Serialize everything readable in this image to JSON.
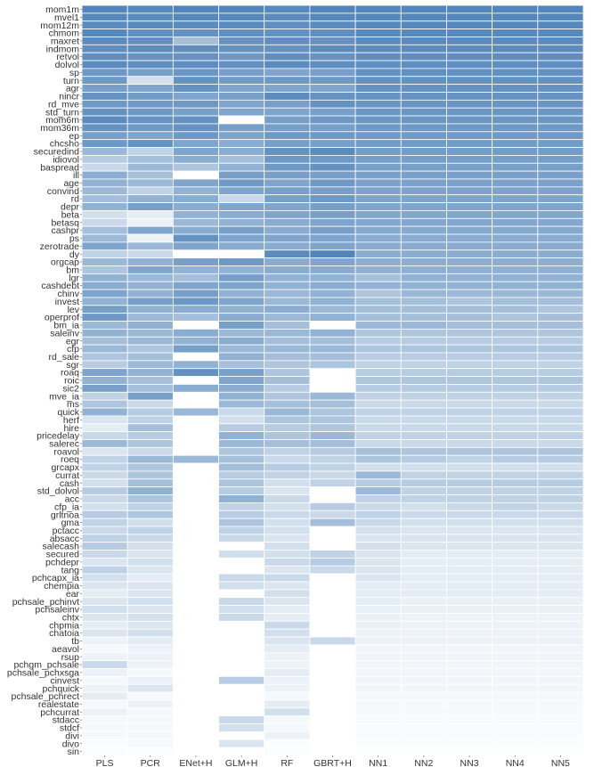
{
  "chart_data": {
    "type": "heatmap",
    "title": "",
    "xlabel": "",
    "ylabel": "",
    "value_scale": "relative variable importance rank (1 = most important, 0 = least), estimated from cell shading",
    "color_low": "#ffffff",
    "color_high": "#4a7fb6",
    "columns": [
      "PLS",
      "PCR",
      "ENet+H",
      "GLM+H",
      "RF",
      "GBRT+H",
      "NN1",
      "NN2",
      "NN3",
      "NN4",
      "NN5"
    ],
    "rows": [
      "mom1m",
      "mvel1",
      "mom12m",
      "chmom",
      "maxret",
      "indmom",
      "retvol",
      "dolvol",
      "sp",
      "turn",
      "agr",
      "nincr",
      "rd_mve",
      "std_turn",
      "mom6m",
      "mom36m",
      "ep",
      "chcsho",
      "securedind",
      "idiovol",
      "baspread",
      "ill",
      "age",
      "convind",
      "rd",
      "depr",
      "beta",
      "betasq",
      "cashpr",
      "ps",
      "zerotrade",
      "dy",
      "orgcap",
      "bm",
      "lgr",
      "cashdebt",
      "chinv",
      "invest",
      "lev",
      "operprof",
      "bm_ia",
      "saleinv",
      "egr",
      "cfp",
      "rd_sale",
      "sgr",
      "roaq",
      "roic",
      "sic2",
      "mve_ia",
      "ms",
      "quick",
      "herf",
      "hire",
      "pricedelay",
      "salerec",
      "roavol",
      "roeq",
      "grcapx",
      "currat",
      "cash",
      "std_dolvol",
      "acc",
      "cfp_ia",
      "grltnoa",
      "gma",
      "pctacc",
      "absacc",
      "salecash",
      "secured",
      "pchdepr",
      "tang",
      "pchcapx_ia",
      "chempia",
      "ear",
      "pchsale_pchinvt",
      "pchsaleinv",
      "chtx",
      "chpmia",
      "chatoia",
      "tb",
      "aeavol",
      "rsup",
      "pchgm_pchsale",
      "pchsale_pchxsga",
      "cinvest",
      "pchquick",
      "pchsale_pchrect",
      "realestate",
      "pchcurrat",
      "stdacc",
      "stdcf",
      "divi",
      "divo",
      "sin"
    ],
    "values": [
      [
        0.95,
        0.93,
        0.95,
        0.95,
        0.92,
        0.95,
        0.95,
        0.95,
        0.95,
        0.95,
        0.95
      ],
      [
        0.92,
        0.9,
        0.93,
        0.93,
        0.9,
        0.93,
        0.94,
        0.94,
        0.94,
        0.94,
        0.94
      ],
      [
        0.9,
        0.92,
        0.9,
        0.9,
        0.88,
        0.9,
        0.93,
        0.93,
        0.93,
        0.93,
        0.93
      ],
      [
        0.93,
        0.88,
        0.85,
        0.88,
        0.85,
        0.88,
        0.92,
        0.92,
        0.92,
        0.92,
        0.92
      ],
      [
        0.9,
        0.88,
        0.5,
        0.85,
        0.88,
        0.85,
        0.91,
        0.91,
        0.91,
        0.91,
        0.91
      ],
      [
        0.88,
        0.9,
        0.88,
        0.85,
        0.85,
        0.9,
        0.9,
        0.9,
        0.9,
        0.9,
        0.9
      ],
      [
        0.88,
        0.85,
        0.85,
        0.8,
        0.88,
        0.85,
        0.89,
        0.89,
        0.89,
        0.89,
        0.89
      ],
      [
        0.9,
        0.88,
        0.88,
        0.85,
        0.9,
        0.88,
        0.88,
        0.88,
        0.88,
        0.88,
        0.88
      ],
      [
        0.8,
        0.75,
        0.82,
        0.75,
        0.7,
        0.75,
        0.87,
        0.87,
        0.87,
        0.87,
        0.87
      ],
      [
        0.8,
        0.25,
        0.85,
        0.78,
        0.8,
        0.8,
        0.86,
        0.86,
        0.86,
        0.86,
        0.86
      ],
      [
        0.75,
        0.7,
        0.85,
        0.7,
        0.7,
        0.7,
        0.85,
        0.85,
        0.85,
        0.85,
        0.85
      ],
      [
        0.85,
        0.78,
        0.7,
        0.75,
        0.9,
        0.85,
        0.84,
        0.84,
        0.84,
        0.84,
        0.84
      ],
      [
        0.8,
        0.8,
        0.8,
        0.7,
        0.75,
        0.85,
        0.83,
        0.83,
        0.83,
        0.83,
        0.83
      ],
      [
        0.85,
        0.8,
        0.75,
        0.7,
        0.7,
        0.75,
        0.82,
        0.82,
        0.82,
        0.82,
        0.82
      ],
      [
        0.9,
        0.85,
        0.85,
        0.0,
        0.75,
        0.8,
        0.81,
        0.81,
        0.81,
        0.81,
        0.81
      ],
      [
        0.85,
        0.8,
        0.85,
        0.75,
        0.75,
        0.75,
        0.8,
        0.8,
        0.8,
        0.8,
        0.8
      ],
      [
        0.75,
        0.7,
        0.8,
        0.7,
        0.8,
        0.8,
        0.79,
        0.79,
        0.79,
        0.79,
        0.79
      ],
      [
        0.8,
        0.85,
        0.7,
        0.65,
        0.75,
        0.75,
        0.78,
        0.78,
        0.78,
        0.78,
        0.78
      ],
      [
        0.55,
        0.35,
        0.7,
        0.65,
        0.85,
        0.9,
        0.77,
        0.77,
        0.77,
        0.77,
        0.77
      ],
      [
        0.4,
        0.5,
        0.65,
        0.5,
        0.8,
        0.8,
        0.76,
        0.76,
        0.76,
        0.76,
        0.76
      ],
      [
        0.3,
        0.55,
        0.45,
        0.6,
        0.8,
        0.85,
        0.75,
        0.75,
        0.75,
        0.75,
        0.75
      ],
      [
        0.65,
        0.5,
        0.0,
        0.75,
        0.75,
        0.75,
        0.74,
        0.74,
        0.74,
        0.74,
        0.74
      ],
      [
        0.6,
        0.55,
        0.7,
        0.8,
        0.7,
        0.8,
        0.73,
        0.73,
        0.73,
        0.73,
        0.73
      ],
      [
        0.55,
        0.35,
        0.6,
        0.7,
        0.75,
        0.75,
        0.72,
        0.72,
        0.72,
        0.72,
        0.72
      ],
      [
        0.5,
        0.6,
        0.65,
        0.3,
        0.75,
        0.8,
        0.71,
        0.71,
        0.71,
        0.71,
        0.71
      ],
      [
        0.6,
        0.75,
        0.65,
        0.7,
        0.7,
        0.75,
        0.7,
        0.7,
        0.7,
        0.7,
        0.7
      ],
      [
        0.25,
        0.15,
        0.6,
        0.65,
        0.7,
        0.75,
        0.69,
        0.69,
        0.69,
        0.69,
        0.69
      ],
      [
        0.3,
        0.1,
        0.55,
        0.6,
        0.65,
        0.7,
        0.68,
        0.68,
        0.68,
        0.68,
        0.68
      ],
      [
        0.5,
        0.7,
        0.65,
        0.75,
        0.65,
        0.75,
        0.67,
        0.67,
        0.67,
        0.67,
        0.67
      ],
      [
        0.55,
        0.1,
        0.85,
        0.7,
        0.7,
        0.7,
        0.66,
        0.66,
        0.66,
        0.66,
        0.66
      ],
      [
        0.7,
        0.55,
        0.7,
        0.65,
        0.65,
        0.7,
        0.65,
        0.65,
        0.65,
        0.65,
        0.65
      ],
      [
        0.35,
        0.3,
        0.0,
        0.0,
        0.9,
        0.95,
        0.64,
        0.64,
        0.64,
        0.64,
        0.64
      ],
      [
        0.55,
        0.6,
        0.75,
        0.8,
        0.65,
        0.7,
        0.63,
        0.63,
        0.63,
        0.63,
        0.63
      ],
      [
        0.45,
        0.7,
        0.6,
        0.6,
        0.65,
        0.65,
        0.62,
        0.62,
        0.62,
        0.62,
        0.62
      ],
      [
        0.6,
        0.55,
        0.5,
        0.75,
        0.6,
        0.6,
        0.5,
        0.6,
        0.6,
        0.6,
        0.6
      ],
      [
        0.65,
        0.6,
        0.7,
        0.7,
        0.6,
        0.65,
        0.6,
        0.6,
        0.6,
        0.6,
        0.6
      ],
      [
        0.7,
        0.6,
        0.75,
        0.6,
        0.55,
        0.6,
        0.45,
        0.55,
        0.55,
        0.55,
        0.55
      ],
      [
        0.6,
        0.75,
        0.8,
        0.7,
        0.55,
        0.6,
        0.5,
        0.5,
        0.45,
        0.5,
        0.5
      ],
      [
        0.75,
        0.6,
        0.65,
        0.6,
        0.65,
        0.55,
        0.5,
        0.5,
        0.5,
        0.5,
        0.45
      ],
      [
        0.8,
        0.55,
        0.5,
        0.65,
        0.55,
        0.6,
        0.5,
        0.5,
        0.5,
        0.45,
        0.5
      ],
      [
        0.55,
        0.6,
        0.0,
        0.75,
        0.5,
        0.0,
        0.55,
        0.55,
        0.5,
        0.5,
        0.5
      ],
      [
        0.6,
        0.55,
        0.65,
        0.55,
        0.55,
        0.6,
        0.45,
        0.45,
        0.45,
        0.45,
        0.45
      ],
      [
        0.5,
        0.55,
        0.6,
        0.65,
        0.5,
        0.5,
        0.4,
        0.4,
        0.4,
        0.4,
        0.4
      ],
      [
        0.55,
        0.45,
        0.75,
        0.55,
        0.55,
        0.55,
        0.45,
        0.45,
        0.45,
        0.45,
        0.45
      ],
      [
        0.45,
        0.5,
        0.0,
        0.6,
        0.5,
        0.5,
        0.4,
        0.4,
        0.4,
        0.4,
        0.4
      ],
      [
        0.4,
        0.55,
        0.6,
        0.5,
        0.45,
        0.45,
        0.35,
        0.35,
        0.35,
        0.35,
        0.35
      ],
      [
        0.7,
        0.6,
        0.85,
        0.75,
        0.45,
        0.0,
        0.4,
        0.4,
        0.4,
        0.4,
        0.4
      ],
      [
        0.6,
        0.5,
        0.0,
        0.7,
        0.5,
        0.0,
        0.45,
        0.45,
        0.45,
        0.45,
        0.45
      ],
      [
        0.75,
        0.5,
        0.65,
        0.65,
        0.4,
        0.0,
        0.4,
        0.4,
        0.4,
        0.4,
        0.4
      ],
      [
        0.35,
        0.75,
        0.0,
        0.6,
        0.45,
        0.55,
        0.35,
        0.35,
        0.35,
        0.35,
        0.35
      ],
      [
        0.45,
        0.3,
        0.0,
        0.55,
        0.5,
        0.5,
        0.3,
        0.3,
        0.3,
        0.3,
        0.3
      ],
      [
        0.6,
        0.4,
        0.55,
        0.3,
        0.55,
        0.45,
        0.35,
        0.35,
        0.35,
        0.35,
        0.35
      ],
      [
        0.2,
        0.35,
        0.0,
        0.25,
        0.45,
        0.45,
        0.3,
        0.3,
        0.3,
        0.3,
        0.3
      ],
      [
        0.15,
        0.5,
        0.0,
        0.4,
        0.4,
        0.45,
        0.3,
        0.3,
        0.3,
        0.3,
        0.3
      ],
      [
        0.3,
        0.4,
        0.0,
        0.6,
        0.45,
        0.55,
        0.35,
        0.35,
        0.35,
        0.35,
        0.35
      ],
      [
        0.55,
        0.45,
        0.0,
        0.55,
        0.5,
        0.5,
        0.3,
        0.3,
        0.3,
        0.3,
        0.3
      ],
      [
        0.2,
        0.3,
        0.0,
        0.45,
        0.35,
        0.4,
        0.5,
        0.45,
        0.45,
        0.45,
        0.45
      ],
      [
        0.35,
        0.55,
        0.55,
        0.5,
        0.3,
        0.35,
        0.45,
        0.4,
        0.35,
        0.4,
        0.4
      ],
      [
        0.35,
        0.45,
        0.0,
        0.5,
        0.4,
        0.35,
        0.25,
        0.25,
        0.25,
        0.25,
        0.25
      ],
      [
        0.3,
        0.45,
        0.0,
        0.4,
        0.35,
        0.3,
        0.55,
        0.35,
        0.35,
        0.35,
        0.35
      ],
      [
        0.25,
        0.5,
        0.0,
        0.45,
        0.25,
        0.35,
        0.4,
        0.4,
        0.4,
        0.4,
        0.4
      ],
      [
        0.4,
        0.6,
        0.0,
        0.4,
        0.2,
        0.0,
        0.55,
        0.35,
        0.35,
        0.35,
        0.35
      ],
      [
        0.3,
        0.45,
        0.0,
        0.6,
        0.3,
        0.0,
        0.35,
        0.35,
        0.35,
        0.35,
        0.35
      ],
      [
        0.25,
        0.35,
        0.0,
        0.35,
        0.25,
        0.4,
        0.3,
        0.25,
        0.3,
        0.35,
        0.3
      ],
      [
        0.4,
        0.45,
        0.0,
        0.4,
        0.3,
        0.3,
        0.35,
        0.3,
        0.3,
        0.3,
        0.3
      ],
      [
        0.35,
        0.25,
        0.0,
        0.45,
        0.25,
        0.5,
        0.3,
        0.25,
        0.25,
        0.25,
        0.25
      ],
      [
        0.3,
        0.35,
        0.0,
        0.35,
        0.25,
        0.0,
        0.25,
        0.2,
        0.2,
        0.2,
        0.2
      ],
      [
        0.35,
        0.3,
        0.0,
        0.3,
        0.2,
        0.0,
        0.2,
        0.2,
        0.2,
        0.2,
        0.2
      ],
      [
        0.4,
        0.25,
        0.0,
        0.0,
        0.25,
        0.0,
        0.25,
        0.2,
        0.2,
        0.2,
        0.2
      ],
      [
        0.3,
        0.2,
        0.0,
        0.25,
        0.25,
        0.35,
        0.2,
        0.15,
        0.15,
        0.15,
        0.15
      ],
      [
        0.2,
        0.25,
        0.0,
        0.0,
        0.3,
        0.4,
        0.2,
        0.15,
        0.15,
        0.15,
        0.15
      ],
      [
        0.35,
        0.2,
        0.0,
        0.0,
        0.2,
        0.3,
        0.2,
        0.15,
        0.15,
        0.15,
        0.15
      ],
      [
        0.25,
        0.15,
        0.0,
        0.3,
        0.3,
        0.0,
        0.2,
        0.15,
        0.15,
        0.15,
        0.15
      ],
      [
        0.2,
        0.2,
        0.0,
        0.25,
        0.2,
        0.0,
        0.15,
        0.15,
        0.15,
        0.15,
        0.15
      ],
      [
        0.15,
        0.2,
        0.0,
        0.0,
        0.25,
        0.0,
        0.15,
        0.15,
        0.15,
        0.15,
        0.15
      ],
      [
        0.2,
        0.25,
        0.0,
        0.3,
        0.2,
        0.0,
        0.15,
        0.12,
        0.12,
        0.12,
        0.12
      ],
      [
        0.25,
        0.2,
        0.0,
        0.25,
        0.15,
        0.0,
        0.12,
        0.12,
        0.12,
        0.12,
        0.12
      ],
      [
        0.2,
        0.25,
        0.0,
        0.3,
        0.15,
        0.0,
        0.12,
        0.1,
        0.1,
        0.1,
        0.1
      ],
      [
        0.15,
        0.2,
        0.0,
        0.0,
        0.3,
        0.0,
        0.12,
        0.1,
        0.1,
        0.1,
        0.1
      ],
      [
        0.2,
        0.25,
        0.0,
        0.0,
        0.25,
        0.0,
        0.1,
        0.1,
        0.1,
        0.1,
        0.1
      ],
      [
        0.1,
        0.15,
        0.0,
        0.0,
        0.2,
        0.3,
        0.1,
        0.1,
        0.1,
        0.1,
        0.1
      ],
      [
        0.05,
        0.1,
        0.0,
        0.0,
        0.15,
        0.0,
        0.08,
        0.08,
        0.08,
        0.08,
        0.08
      ],
      [
        0.1,
        0.1,
        0.0,
        0.0,
        0.1,
        0.0,
        0.08,
        0.08,
        0.08,
        0.08,
        0.08
      ],
      [
        0.3,
        0.1,
        0.0,
        0.0,
        0.1,
        0.0,
        0.08,
        0.08,
        0.08,
        0.08,
        0.08
      ],
      [
        0.1,
        0.05,
        0.0,
        0.0,
        0.15,
        0.0,
        0.07,
        0.07,
        0.07,
        0.07,
        0.07
      ],
      [
        0.05,
        0.1,
        0.0,
        0.4,
        0.1,
        0.0,
        0.07,
        0.07,
        0.07,
        0.07,
        0.07
      ],
      [
        0.1,
        0.2,
        0.0,
        0.0,
        0.1,
        0.0,
        0.07,
        0.07,
        0.07,
        0.07,
        0.07
      ],
      [
        0.15,
        0.05,
        0.0,
        0.0,
        0.05,
        0.0,
        0.06,
        0.06,
        0.06,
        0.06,
        0.06
      ],
      [
        0.05,
        0.1,
        0.0,
        0.0,
        0.15,
        0.0,
        0.05,
        0.05,
        0.05,
        0.05,
        0.05
      ],
      [
        0.1,
        0.05,
        0.0,
        0.0,
        0.25,
        0.0,
        0.05,
        0.05,
        0.05,
        0.05,
        0.05
      ],
      [
        0.05,
        0.05,
        0.0,
        0.3,
        0.05,
        0.0,
        0.04,
        0.04,
        0.04,
        0.04,
        0.04
      ],
      [
        0.05,
        0.05,
        0.0,
        0.25,
        0.05,
        0.0,
        0.04,
        0.04,
        0.04,
        0.04,
        0.04
      ],
      [
        0.05,
        0.05,
        0.0,
        0.0,
        0.1,
        0.0,
        0.03,
        0.03,
        0.03,
        0.03,
        0.03
      ],
      [
        0.02,
        0.05,
        0.0,
        0.2,
        0.02,
        0.0,
        0.02,
        0.02,
        0.02,
        0.02,
        0.02
      ],
      [
        0.02,
        0.02,
        0.0,
        0.0,
        0.02,
        0.0,
        0.01,
        0.01,
        0.01,
        0.01,
        0.01
      ]
    ]
  }
}
